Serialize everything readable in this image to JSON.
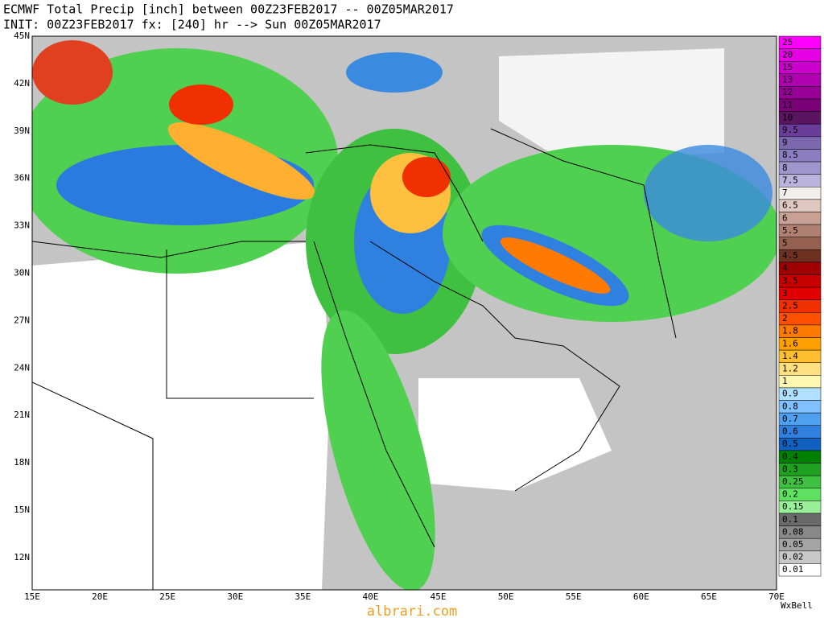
{
  "header": {
    "line1": "ECMWF Total Precip [inch] between 00Z23FEB2017 -- 00Z05MAR2017",
    "line2": "INIT: 00Z23FEB2017 fx: [240] hr --> Sun 00Z05MAR2017"
  },
  "map": {
    "lat_labels": [
      "45N",
      "42N",
      "39N",
      "36N",
      "33N",
      "30N",
      "27N",
      "24N",
      "21N",
      "18N",
      "15N",
      "12N"
    ],
    "lon_labels": [
      "15E",
      "20E",
      "25E",
      "30E",
      "35E",
      "40E",
      "45E",
      "50E",
      "55E",
      "60E",
      "65E",
      "70E"
    ]
  },
  "colorbar": {
    "levels": [
      {
        "label": "25",
        "color": "#ff00ff"
      },
      {
        "label": "20",
        "color": "#e600e6"
      },
      {
        "label": "15",
        "color": "#cc00cc"
      },
      {
        "label": "13",
        "color": "#b000b0"
      },
      {
        "label": "12",
        "color": "#960096"
      },
      {
        "label": "11",
        "color": "#7a007a"
      },
      {
        "label": "10",
        "color": "#5a1460"
      },
      {
        "label": "9.5",
        "color": "#6a3d9a"
      },
      {
        "label": "9",
        "color": "#7b68ae"
      },
      {
        "label": "8.5",
        "color": "#8b7ec0"
      },
      {
        "label": "8",
        "color": "#9e96cc"
      },
      {
        "label": "7.5",
        "color": "#bab4dc"
      },
      {
        "label": "7",
        "color": "#f2eeee"
      },
      {
        "label": "6.5",
        "color": "#e0c8c0"
      },
      {
        "label": "6",
        "color": "#c8a094"
      },
      {
        "label": "5.5",
        "color": "#b08072"
      },
      {
        "label": "5",
        "color": "#966050"
      },
      {
        "label": "4.5",
        "color": "#6e3020"
      },
      {
        "label": "4",
        "color": "#a00000"
      },
      {
        "label": "3.5",
        "color": "#c80000"
      },
      {
        "label": "3",
        "color": "#e00000"
      },
      {
        "label": "2.5",
        "color": "#f03000"
      },
      {
        "label": "2",
        "color": "#ff5000"
      },
      {
        "label": "1.8",
        "color": "#ff7a00"
      },
      {
        "label": "1.6",
        "color": "#ffa000"
      },
      {
        "label": "1.4",
        "color": "#ffbe30"
      },
      {
        "label": "1.2",
        "color": "#ffe080"
      },
      {
        "label": "1",
        "color": "#fff8b0"
      },
      {
        "label": "0.9",
        "color": "#b0e0ff"
      },
      {
        "label": "0.8",
        "color": "#80c0ff"
      },
      {
        "label": "0.7",
        "color": "#50a0f0"
      },
      {
        "label": "0.6",
        "color": "#3080e0"
      },
      {
        "label": "0.5",
        "color": "#1060c0"
      },
      {
        "label": "0.4",
        "color": "#008000"
      },
      {
        "label": "0.3",
        "color": "#20a020"
      },
      {
        "label": "0.25",
        "color": "#40c040"
      },
      {
        "label": "0.2",
        "color": "#60e060"
      },
      {
        "label": "0.15",
        "color": "#98f098"
      },
      {
        "label": "0.1",
        "color": "#6a6a6a"
      },
      {
        "label": "0.08",
        "color": "#888888"
      },
      {
        "label": "0.05",
        "color": "#a4a4a4"
      },
      {
        "label": "0.02",
        "color": "#c8c8c8"
      },
      {
        "label": "0.01",
        "color": "#ffffff"
      }
    ]
  },
  "credit": "WxBell",
  "watermark": "albrari.com"
}
